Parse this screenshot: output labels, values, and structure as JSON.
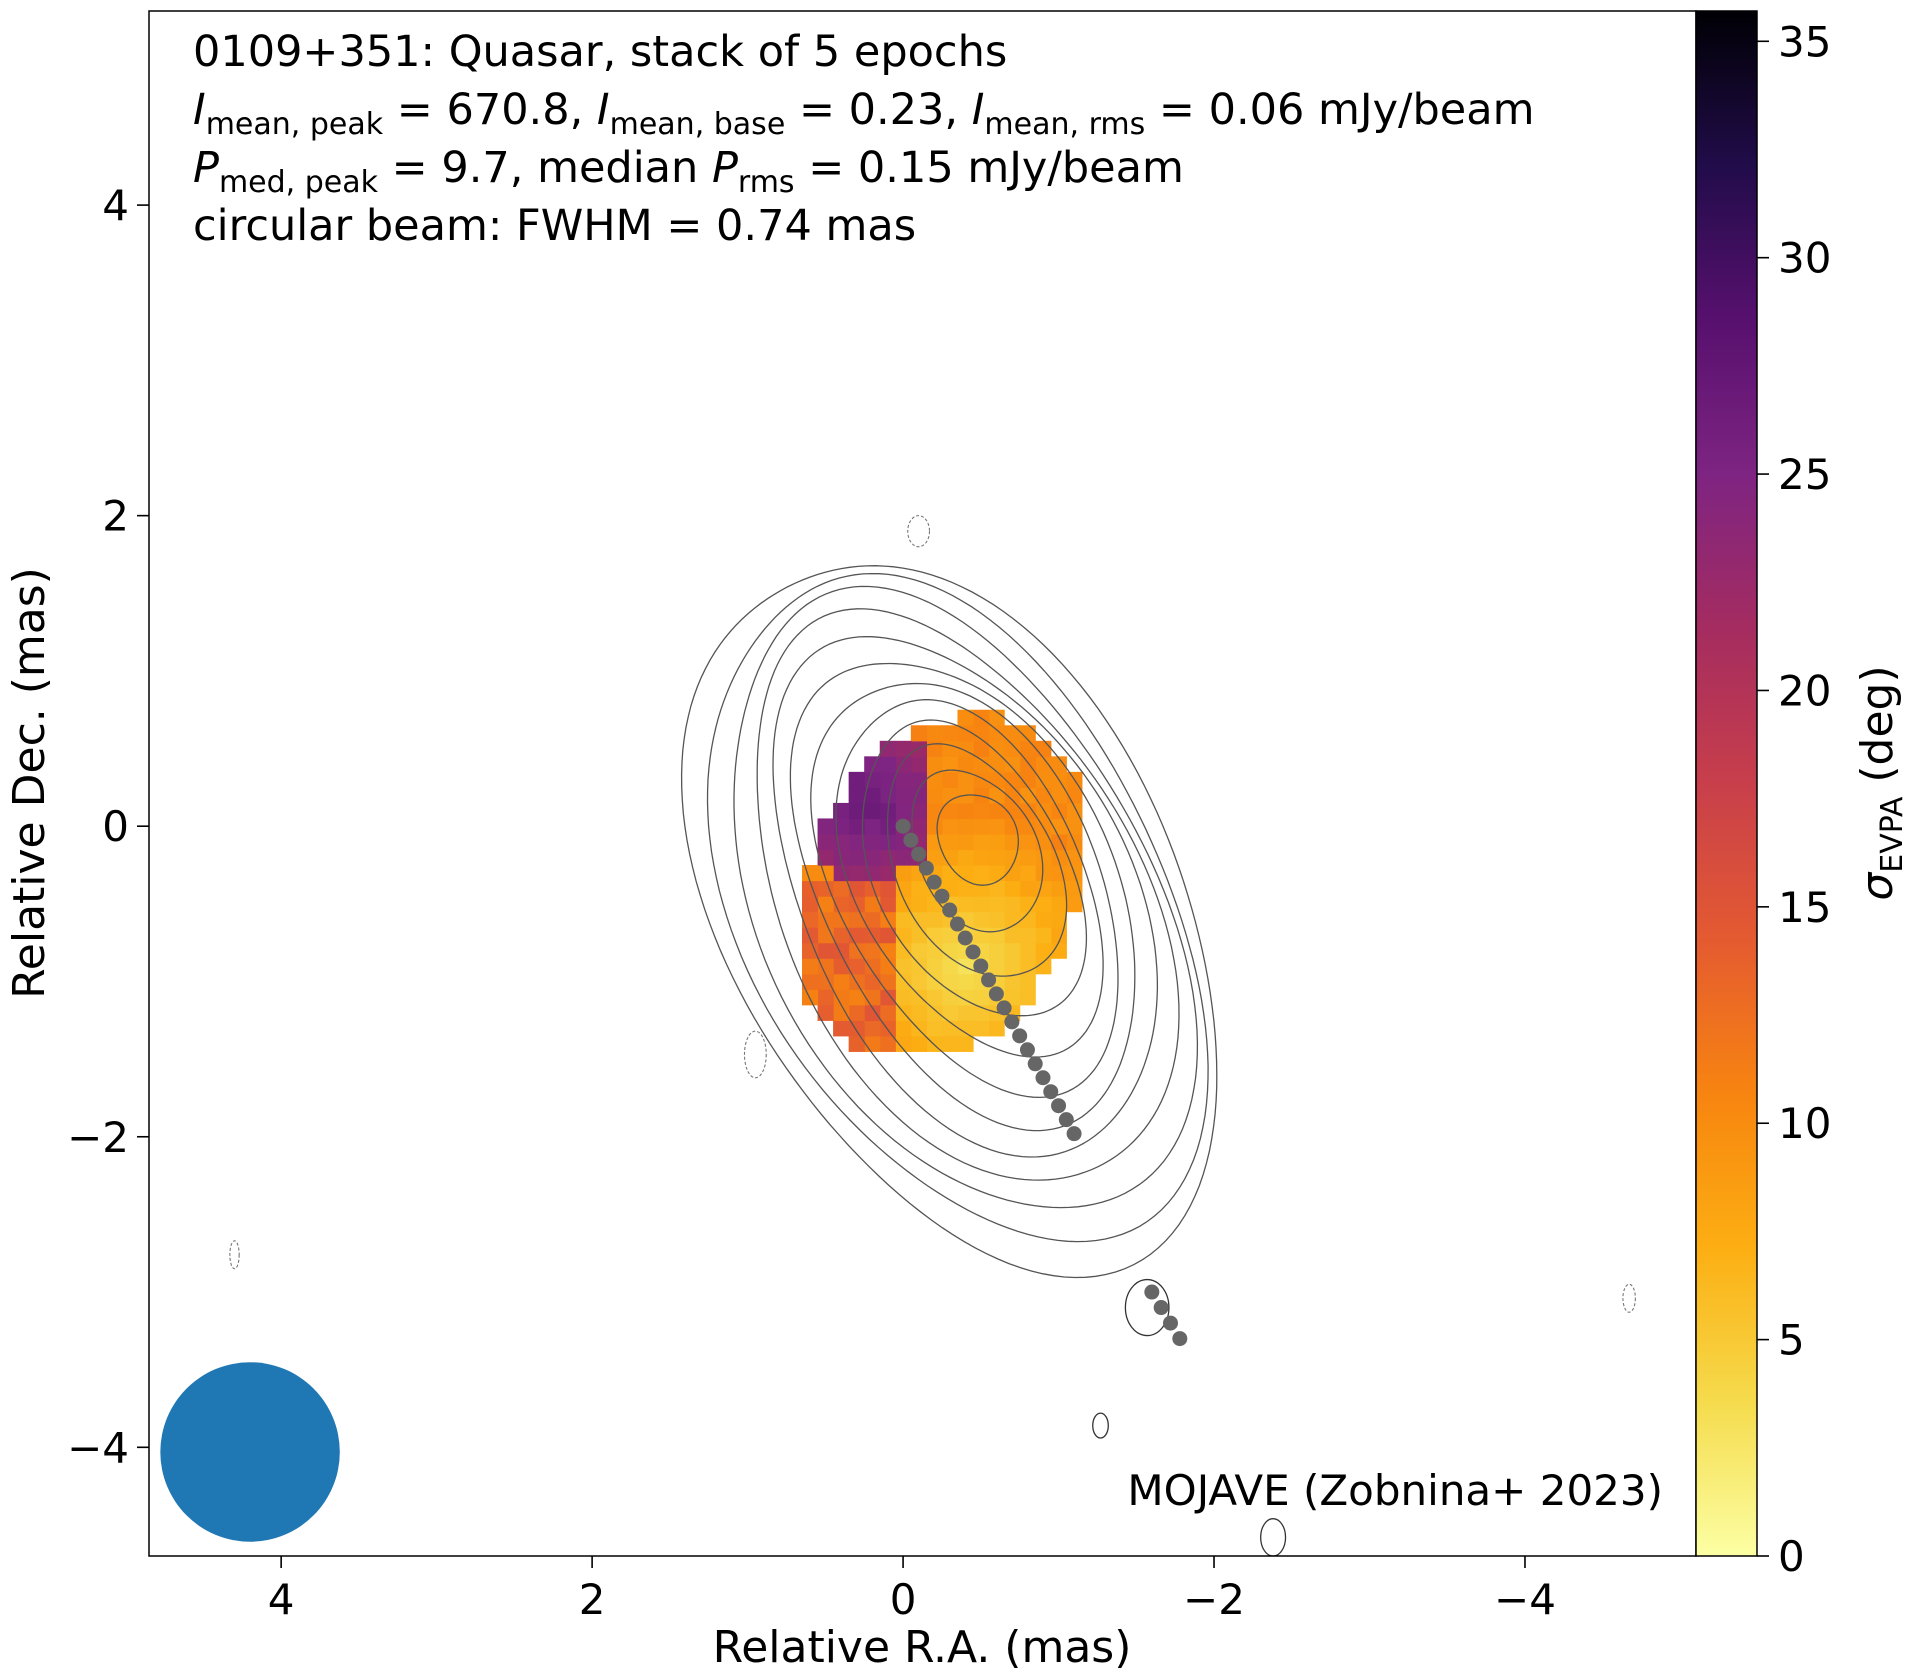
{
  "chart_data": {
    "type": "heatmap",
    "title_lines": [
      [
        {
          "t": "0109+351: Quasar, stack of 5 epochs"
        }
      ],
      [
        {
          "t": "I",
          "it": true
        },
        {
          "t": "mean, peak",
          "sub": true
        },
        {
          "t": " = 670.8, "
        },
        {
          "t": "I",
          "it": true
        },
        {
          "t": "mean, base",
          "sub": true
        },
        {
          "t": " = 0.23, "
        },
        {
          "t": "I",
          "it": true
        },
        {
          "t": "mean, rms",
          "sub": true
        },
        {
          "t": " = 0.06 mJy/beam"
        }
      ],
      [
        {
          "t": "P",
          "it": true
        },
        {
          "t": "med, peak",
          "sub": true
        },
        {
          "t": " = 9.7, median "
        },
        {
          "t": "P",
          "it": true
        },
        {
          "t": "rms",
          "sub": true
        },
        {
          "t": " = 0.15 mJy/beam"
        }
      ],
      [
        {
          "t": "circular beam: FWHM = 0.74 mas"
        }
      ]
    ],
    "xlabel": "Relative R.A. (mas)",
    "ylabel": "Relative Dec. (mas)",
    "xlim": [
      4.85,
      -5.1
    ],
    "ylim": [
      -4.7,
      5.25
    ],
    "xticks": [
      4,
      2,
      0,
      -2,
      -4
    ],
    "yticks": [
      4,
      2,
      0,
      -2,
      -4
    ],
    "xtick_labels": [
      "4",
      "2",
      "0",
      "−2",
      "−4"
    ],
    "ytick_labels": [
      "4",
      "2",
      "0",
      "−2",
      "−4"
    ],
    "credit": "MOJAVE (Zobnina+ 2023)",
    "colorbar": {
      "label_main": "σ",
      "label_sub": "EVPA",
      "label_unit": " (deg)",
      "range": [
        0,
        35.7
      ],
      "ticks": [
        0,
        5,
        10,
        15,
        20,
        25,
        30,
        35
      ],
      "tick_labels": [
        "0",
        "5",
        "10",
        "15",
        "20",
        "25",
        "30",
        "35"
      ],
      "colormap": "inferno_r"
    },
    "beam": {
      "x": 4.2,
      "y": -4.03,
      "fwhm_mas": 0.74,
      "color": "#1f77b4"
    },
    "ridge_line": {
      "color": "#666666",
      "points": [
        [
          0.0,
          0.0
        ],
        [
          -0.05,
          -0.09
        ],
        [
          -0.1,
          -0.18
        ],
        [
          -0.15,
          -0.27
        ],
        [
          -0.2,
          -0.36
        ],
        [
          -0.25,
          -0.45
        ],
        [
          -0.3,
          -0.54
        ],
        [
          -0.35,
          -0.63
        ],
        [
          -0.4,
          -0.72
        ],
        [
          -0.45,
          -0.81
        ],
        [
          -0.5,
          -0.9
        ],
        [
          -0.55,
          -0.99
        ],
        [
          -0.6,
          -1.08
        ],
        [
          -0.65,
          -1.17
        ],
        [
          -0.7,
          -1.26
        ],
        [
          -0.75,
          -1.35
        ],
        [
          -0.8,
          -1.44
        ],
        [
          -0.85,
          -1.53
        ],
        [
          -0.9,
          -1.62
        ],
        [
          -0.95,
          -1.71
        ],
        [
          -1.0,
          -1.8
        ],
        [
          -1.05,
          -1.89
        ],
        [
          -1.1,
          -1.98
        ]
      ]
    },
    "secondary_ridge": [
      [
        -1.6,
        -3.0
      ],
      [
        -1.66,
        -3.1
      ],
      [
        -1.72,
        -3.2
      ],
      [
        -1.78,
        -3.3
      ]
    ],
    "contours": {
      "center": [
        -0.25,
        -0.4
      ],
      "rotation_deg": 27,
      "levels": [
        {
          "a": 2.45,
          "b": 1.46,
          "dx": 0.0,
          "dy": 0.0
        },
        {
          "a": 2.3,
          "b": 1.35,
          "dx": 0.02,
          "dy": 0.02
        },
        {
          "a": 2.15,
          "b": 1.25,
          "dx": 0.04,
          "dy": 0.04
        },
        {
          "a": 1.98,
          "b": 1.14,
          "dx": 0.06,
          "dy": 0.06
        },
        {
          "a": 1.8,
          "b": 1.04,
          "dx": 0.08,
          "dy": 0.08
        },
        {
          "a": 1.62,
          "b": 0.93,
          "dx": 0.1,
          "dy": 0.1
        },
        {
          "a": 1.43,
          "b": 0.83,
          "dx": 0.12,
          "dy": 0.12
        },
        {
          "a": 1.23,
          "b": 0.72,
          "dx": 0.14,
          "dy": 0.15
        },
        {
          "a": 1.02,
          "b": 0.61,
          "dx": 0.16,
          "dy": 0.18
        },
        {
          "a": 0.8,
          "b": 0.5,
          "dx": 0.18,
          "dy": 0.22
        },
        {
          "a": 0.55,
          "b": 0.38,
          "dx": 0.2,
          "dy": 0.28
        },
        {
          "a": 0.3,
          "b": 0.25,
          "dx": 0.22,
          "dy": 0.34
        }
      ]
    },
    "neg_contours": [
      {
        "x": -0.1,
        "y": 1.9,
        "rx": 0.07,
        "ry": 0.1
      },
      {
        "x": 0.95,
        "y": -1.47,
        "rx": 0.07,
        "ry": 0.15
      },
      {
        "x": 4.3,
        "y": -2.76,
        "rx": 0.03,
        "ry": 0.09
      },
      {
        "x": -4.67,
        "y": -3.04,
        "rx": 0.04,
        "ry": 0.09
      }
    ],
    "pos_contours": [
      {
        "x": -1.57,
        "y": -3.1,
        "rx": 0.14,
        "ry": 0.18
      },
      {
        "x": -1.27,
        "y": -3.86,
        "rx": 0.05,
        "ry": 0.08
      },
      {
        "x": -2.38,
        "y": -4.58,
        "rx": 0.08,
        "ry": 0.12
      }
    ],
    "polarization_map": {
      "pixel_size_mas": 0.1,
      "region": {
        "center": [
          -0.25,
          -0.4
        ],
        "rotation_deg": 27,
        "a": 1.18,
        "b": 0.86
      },
      "clip_ylim": [
        -1.48,
        0.8
      ],
      "value_regions": [
        {
          "where": "upper-left core",
          "center": [
            0.25,
            0.15
          ],
          "radius": 0.55,
          "sigma_deg_range": [
            17,
            28
          ]
        },
        {
          "where": "jet body",
          "center": [
            -0.4,
            -0.9
          ],
          "sigma_deg_range": [
            3,
            11
          ]
        },
        {
          "where": "lower-left edge",
          "center": [
            0.2,
            -0.9
          ],
          "sigma_deg_range": [
            11,
            15
          ]
        }
      ]
    }
  }
}
